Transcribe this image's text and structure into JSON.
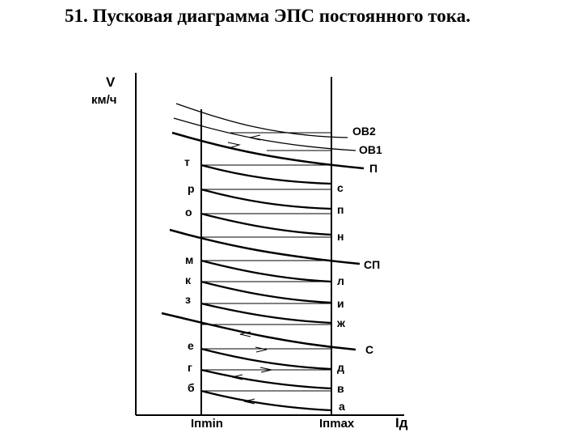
{
  "title": "51. Пусковая диаграмма ЭПС постоянного тока.",
  "axes": {
    "y_label": "V",
    "y_unit": "км/ч",
    "x_label": "Iд",
    "x_tick_min": "Iпmin",
    "x_tick_max": "Iпmax"
  },
  "curve_labels": [
    "ОВ2",
    "ОВ1",
    "П",
    "СП",
    "С"
  ],
  "left_points": [
    "т",
    "р",
    "о",
    "м",
    "к",
    "з",
    "е",
    "г",
    "б"
  ],
  "right_points": [
    "с",
    "п",
    "н",
    "л",
    "и",
    "ж",
    "д",
    "в",
    "а"
  ]
}
